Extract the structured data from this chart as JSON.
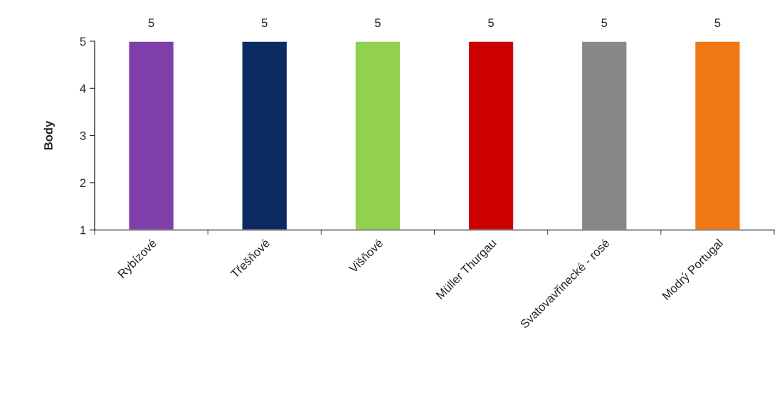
{
  "chart_data": {
    "type": "bar",
    "ylabel": "Body",
    "categories": [
      "Rybízové",
      "Třešňové",
      "Višňové",
      "Müller Thurgau",
      "Svatovavřinecké - rosé",
      "Modrý Portugal"
    ],
    "values": [
      5,
      5,
      5,
      5,
      5,
      5
    ],
    "colors": [
      "#7f3fa8",
      "#0e2a63",
      "#92d050",
      "#cc0000",
      "#888888",
      "#f07814"
    ],
    "ylim": [
      1,
      5
    ],
    "yticks": [
      1,
      2,
      3,
      4,
      5
    ],
    "grid": false,
    "data_labels": true
  }
}
